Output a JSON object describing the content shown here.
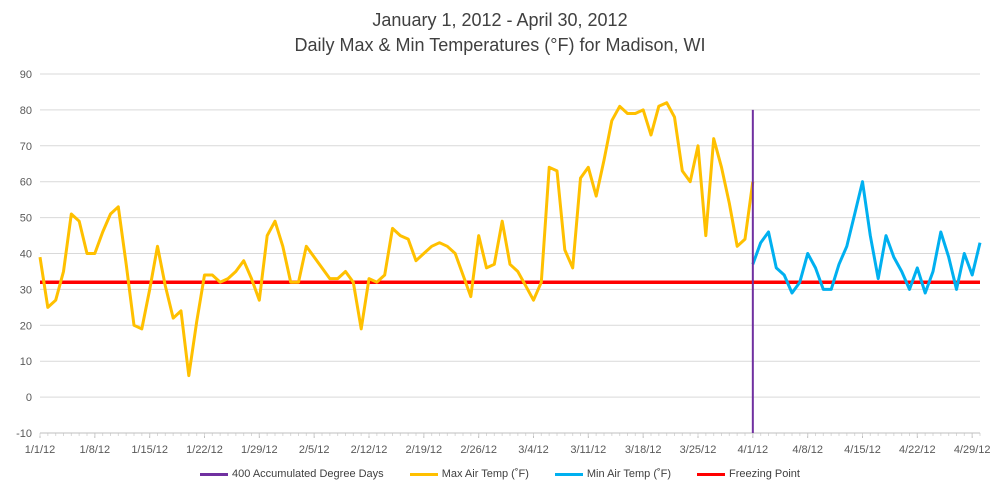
{
  "chart_data": {
    "type": "line",
    "title": "January 1, 2012 - April 30, 2012",
    "subtitle": "Daily Max & Min Temperatures (°F) for Madison, WI",
    "ylim": [
      -10,
      90
    ],
    "yticks": [
      -10,
      0,
      10,
      20,
      30,
      40,
      50,
      60,
      70,
      80,
      90
    ],
    "x_start": "1/1/12",
    "x_end": "4/30/12",
    "xtick_labels": [
      "1/1/12",
      "1/8/12",
      "1/15/12",
      "1/22/12",
      "1/29/12",
      "2/5/12",
      "2/12/12",
      "2/19/12",
      "2/26/12",
      "3/4/12",
      "3/11/12",
      "3/18/12",
      "3/25/12",
      "4/1/12",
      "4/8/12",
      "4/15/12",
      "4/22/12",
      "4/29/12"
    ],
    "grid": true,
    "legend_position": "bottom",
    "series": [
      {
        "name": "400 Accumulated Degree Days",
        "color": "#7030A0",
        "kind": "vertical_line",
        "x": "4/1/12",
        "range": [
          -10,
          80
        ]
      },
      {
        "name": "Max Air Temp (˚F)",
        "color": "#FFC000",
        "x_start": "1/1/12",
        "values": [
          39,
          25,
          27,
          35,
          51,
          49,
          40,
          40,
          46,
          51,
          53,
          37,
          20,
          19,
          30,
          42,
          31,
          22,
          24,
          6,
          21,
          34,
          34,
          32,
          33,
          35,
          38,
          33,
          27,
          45,
          49,
          42,
          32,
          32,
          42,
          39,
          36,
          33,
          33,
          35,
          32,
          19,
          33,
          32,
          34,
          47,
          45,
          44,
          38,
          40,
          42,
          43,
          42,
          40,
          34,
          28,
          45,
          36,
          37,
          49,
          37,
          35,
          31,
          27,
          32,
          64,
          63,
          41,
          36,
          61,
          64,
          56,
          66,
          77,
          81,
          79,
          79,
          80,
          73,
          81,
          82,
          78,
          63,
          60,
          70,
          45,
          72,
          64,
          54,
          42,
          44,
          60
        ]
      },
      {
        "name": "Min Air Temp (˚F)",
        "color": "#00B0F0",
        "x_start": "4/1/12",
        "values": [
          37,
          43,
          46,
          36,
          34,
          29,
          32,
          40,
          36,
          30,
          30,
          37,
          42,
          51,
          60,
          45,
          33,
          45,
          39,
          35,
          30,
          36,
          29,
          35,
          46,
          39,
          30,
          40,
          34,
          43
        ]
      },
      {
        "name": "Freezing Point",
        "color": "#FF0000",
        "kind": "horizontal_line",
        "y": 32
      }
    ]
  }
}
